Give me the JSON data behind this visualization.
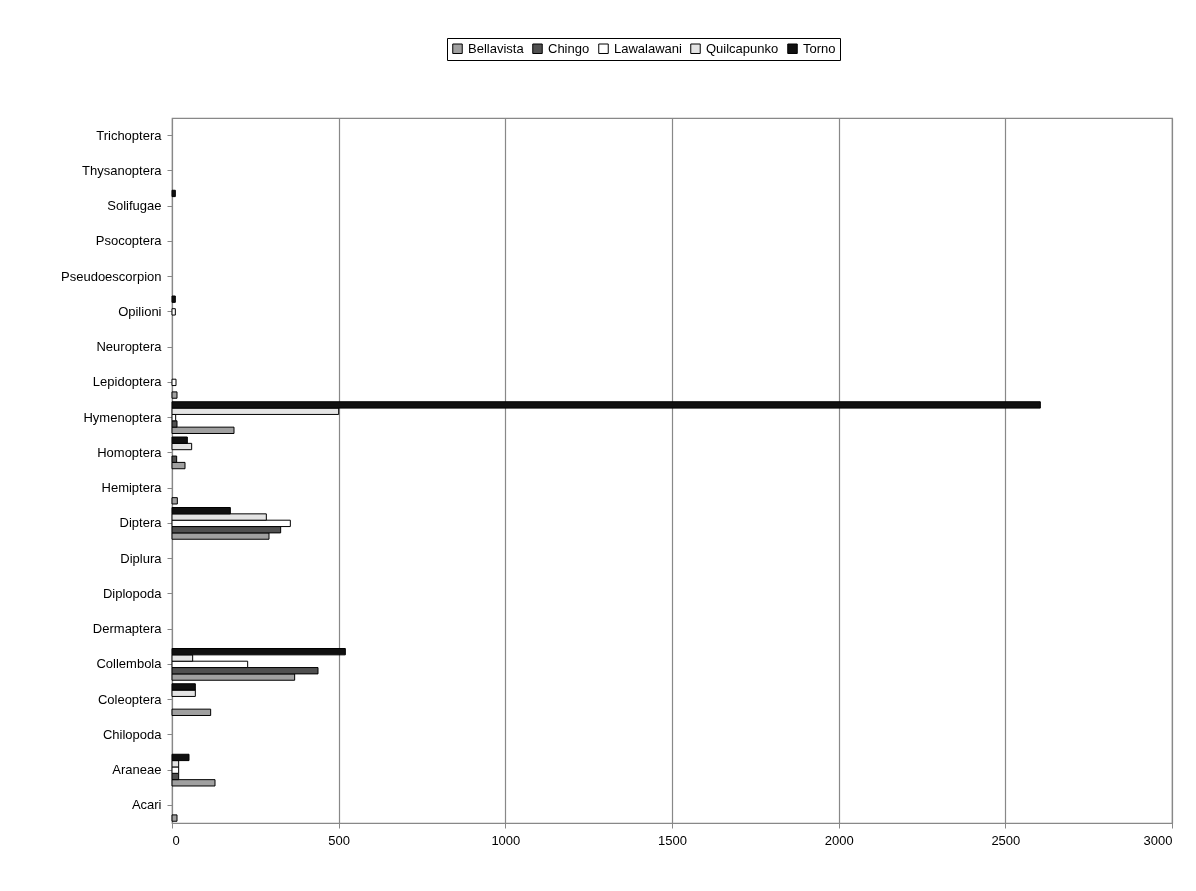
{
  "chart_data": {
    "type": "bar",
    "orientation": "horizontal",
    "categories": [
      "Trichoptera",
      "Thysanoptera",
      "Solifugae",
      "Psocoptera",
      "Pseudoescorpion",
      "Opilioni",
      "Neuroptera",
      "Lepidoptera",
      "Hymenoptera",
      "Homoptera",
      "Hemiptera",
      "Diptera",
      "Diplura",
      "Diplopoda",
      "Dermaptera",
      "Collembola",
      "Coleoptera",
      "Chilopoda",
      "Araneae",
      "Acari"
    ],
    "series": [
      {
        "name": "Bellavista",
        "color": "#a0a0a0",
        "values": [
          null,
          null,
          null,
          null,
          null,
          null,
          null,
          15,
          186,
          39,
          16,
          291,
          null,
          null,
          null,
          368,
          116,
          null,
          129,
          15
        ]
      },
      {
        "name": "Chingo",
        "color": "#505050",
        "values": [
          null,
          null,
          null,
          null,
          null,
          null,
          null,
          null,
          15,
          14,
          null,
          326,
          null,
          null,
          null,
          438,
          null,
          null,
          20,
          null
        ]
      },
      {
        "name": "Lawalawani",
        "color": "#ffffff",
        "values": [
          null,
          null,
          null,
          null,
          null,
          10,
          null,
          12,
          11,
          null,
          null,
          355,
          null,
          null,
          null,
          227,
          null,
          null,
          20,
          null
        ]
      },
      {
        "name": "Quilcapunko",
        "color": "#e4e4e4",
        "values": [
          null,
          null,
          null,
          null,
          null,
          null,
          null,
          null,
          500,
          59,
          null,
          283,
          null,
          null,
          null,
          62,
          70,
          null,
          20,
          null
        ]
      },
      {
        "name": "Torno",
        "color": "#101010",
        "values": [
          null,
          null,
          10,
          null,
          null,
          10,
          null,
          null,
          2605,
          46,
          null,
          175,
          null,
          null,
          null,
          520,
          70,
          null,
          51,
          null
        ]
      }
    ],
    "xlim": [
      0,
      3000
    ],
    "xticks": [
      0,
      500,
      1000,
      1500,
      2000,
      2500,
      3000
    ],
    "grid": "x",
    "legend": "top"
  }
}
